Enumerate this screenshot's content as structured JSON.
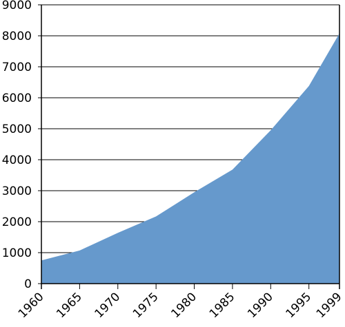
{
  "chart_data": {
    "type": "area",
    "title": "",
    "xlabel": "",
    "ylabel": "",
    "x": [
      "1960",
      "1965",
      "1970",
      "1975",
      "1980",
      "1985",
      "1990",
      "1995",
      "1999"
    ],
    "x_numeric": [
      1960,
      1965,
      1970,
      1975,
      1980,
      1985,
      1990,
      1995,
      1999
    ],
    "series": [
      {
        "values": [
          750,
          1070,
          1640,
          2170,
          2950,
          3680,
          4950,
          6380,
          8080
        ]
      }
    ],
    "xlim": [
      1960,
      1999
    ],
    "ylim": [
      0,
      9000
    ],
    "yticks": [
      "0",
      "1000",
      "2000",
      "3000",
      "4000",
      "5000",
      "6000",
      "7000",
      "8000",
      "9000"
    ],
    "grid": "horizontal",
    "legend": "none",
    "colors": {
      "area_fill": "#6699cc",
      "axis": "#000000",
      "grid": "#000000",
      "background": "#ffffff"
    }
  }
}
